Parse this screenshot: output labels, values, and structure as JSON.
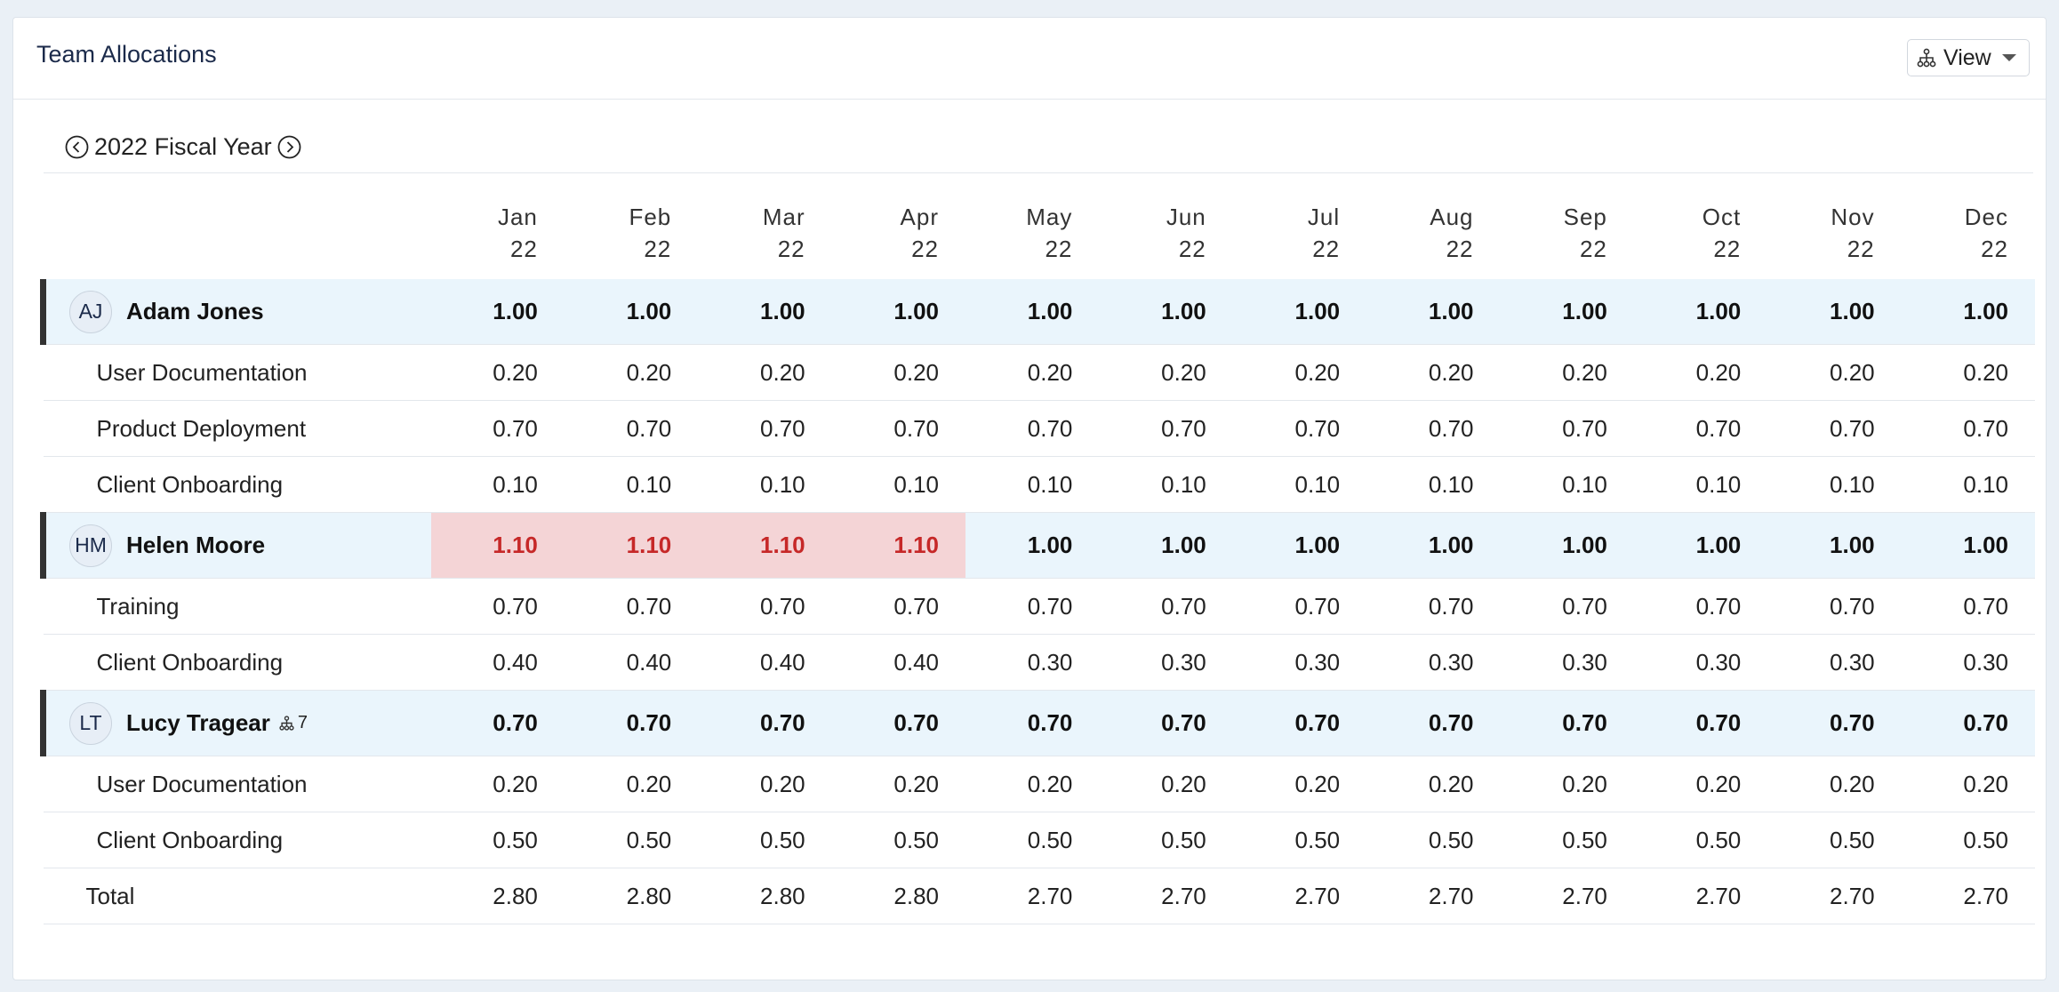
{
  "header": {
    "title": "Team Allocations",
    "view_label": "View"
  },
  "year_nav": {
    "label": "2022 Fiscal Year"
  },
  "months": [
    {
      "m": "Jan",
      "y": "22"
    },
    {
      "m": "Feb",
      "y": "22"
    },
    {
      "m": "Mar",
      "y": "22"
    },
    {
      "m": "Apr",
      "y": "22"
    },
    {
      "m": "May",
      "y": "22"
    },
    {
      "m": "Jun",
      "y": "22"
    },
    {
      "m": "Jul",
      "y": "22"
    },
    {
      "m": "Aug",
      "y": "22"
    },
    {
      "m": "Sep",
      "y": "22"
    },
    {
      "m": "Oct",
      "y": "22"
    },
    {
      "m": "Nov",
      "y": "22"
    },
    {
      "m": "Dec",
      "y": "22"
    }
  ],
  "people": [
    {
      "initials": "AJ",
      "name": "Adam Jones",
      "reports": null,
      "totals": [
        "1.00",
        "1.00",
        "1.00",
        "1.00",
        "1.00",
        "1.00",
        "1.00",
        "1.00",
        "1.00",
        "1.00",
        "1.00",
        "1.00"
      ],
      "over": [
        false,
        false,
        false,
        false,
        false,
        false,
        false,
        false,
        false,
        false,
        false,
        false
      ],
      "projects": [
        {
          "name": "User Documentation",
          "values": [
            "0.20",
            "0.20",
            "0.20",
            "0.20",
            "0.20",
            "0.20",
            "0.20",
            "0.20",
            "0.20",
            "0.20",
            "0.20",
            "0.20"
          ]
        },
        {
          "name": "Product Deployment",
          "values": [
            "0.70",
            "0.70",
            "0.70",
            "0.70",
            "0.70",
            "0.70",
            "0.70",
            "0.70",
            "0.70",
            "0.70",
            "0.70",
            "0.70"
          ]
        },
        {
          "name": "Client Onboarding",
          "values": [
            "0.10",
            "0.10",
            "0.10",
            "0.10",
            "0.10",
            "0.10",
            "0.10",
            "0.10",
            "0.10",
            "0.10",
            "0.10",
            "0.10"
          ]
        }
      ]
    },
    {
      "initials": "HM",
      "name": "Helen Moore",
      "reports": null,
      "totals": [
        "1.10",
        "1.10",
        "1.10",
        "1.10",
        "1.00",
        "1.00",
        "1.00",
        "1.00",
        "1.00",
        "1.00",
        "1.00",
        "1.00"
      ],
      "over": [
        true,
        true,
        true,
        true,
        false,
        false,
        false,
        false,
        false,
        false,
        false,
        false
      ],
      "projects": [
        {
          "name": "Training",
          "values": [
            "0.70",
            "0.70",
            "0.70",
            "0.70",
            "0.70",
            "0.70",
            "0.70",
            "0.70",
            "0.70",
            "0.70",
            "0.70",
            "0.70"
          ]
        },
        {
          "name": "Client Onboarding",
          "values": [
            "0.40",
            "0.40",
            "0.40",
            "0.40",
            "0.30",
            "0.30",
            "0.30",
            "0.30",
            "0.30",
            "0.30",
            "0.30",
            "0.30"
          ]
        }
      ]
    },
    {
      "initials": "LT",
      "name": "Lucy Tragear",
      "reports": "7",
      "totals": [
        "0.70",
        "0.70",
        "0.70",
        "0.70",
        "0.70",
        "0.70",
        "0.70",
        "0.70",
        "0.70",
        "0.70",
        "0.70",
        "0.70"
      ],
      "over": [
        false,
        false,
        false,
        false,
        false,
        false,
        false,
        false,
        false,
        false,
        false,
        false
      ],
      "projects": [
        {
          "name": "User Documentation",
          "values": [
            "0.20",
            "0.20",
            "0.20",
            "0.20",
            "0.20",
            "0.20",
            "0.20",
            "0.20",
            "0.20",
            "0.20",
            "0.20",
            "0.20"
          ]
        },
        {
          "name": "Client Onboarding",
          "values": [
            "0.50",
            "0.50",
            "0.50",
            "0.50",
            "0.50",
            "0.50",
            "0.50",
            "0.50",
            "0.50",
            "0.50",
            "0.50",
            "0.50"
          ]
        }
      ]
    }
  ],
  "total": {
    "label": "Total",
    "values": [
      "2.80",
      "2.80",
      "2.80",
      "2.80",
      "2.70",
      "2.70",
      "2.70",
      "2.70",
      "2.70",
      "2.70",
      "2.70",
      "2.70"
    ]
  },
  "colors": {
    "person_row_bg": "#eaf5fc",
    "over_bg": "#f4d4d6",
    "over_text": "#c62828",
    "accent_bar": "#333333"
  },
  "icons": {
    "view": "org-chart-icon",
    "prev": "chevron-left-circle-icon",
    "next": "chevron-right-circle-icon",
    "reports": "org-chart-icon"
  }
}
